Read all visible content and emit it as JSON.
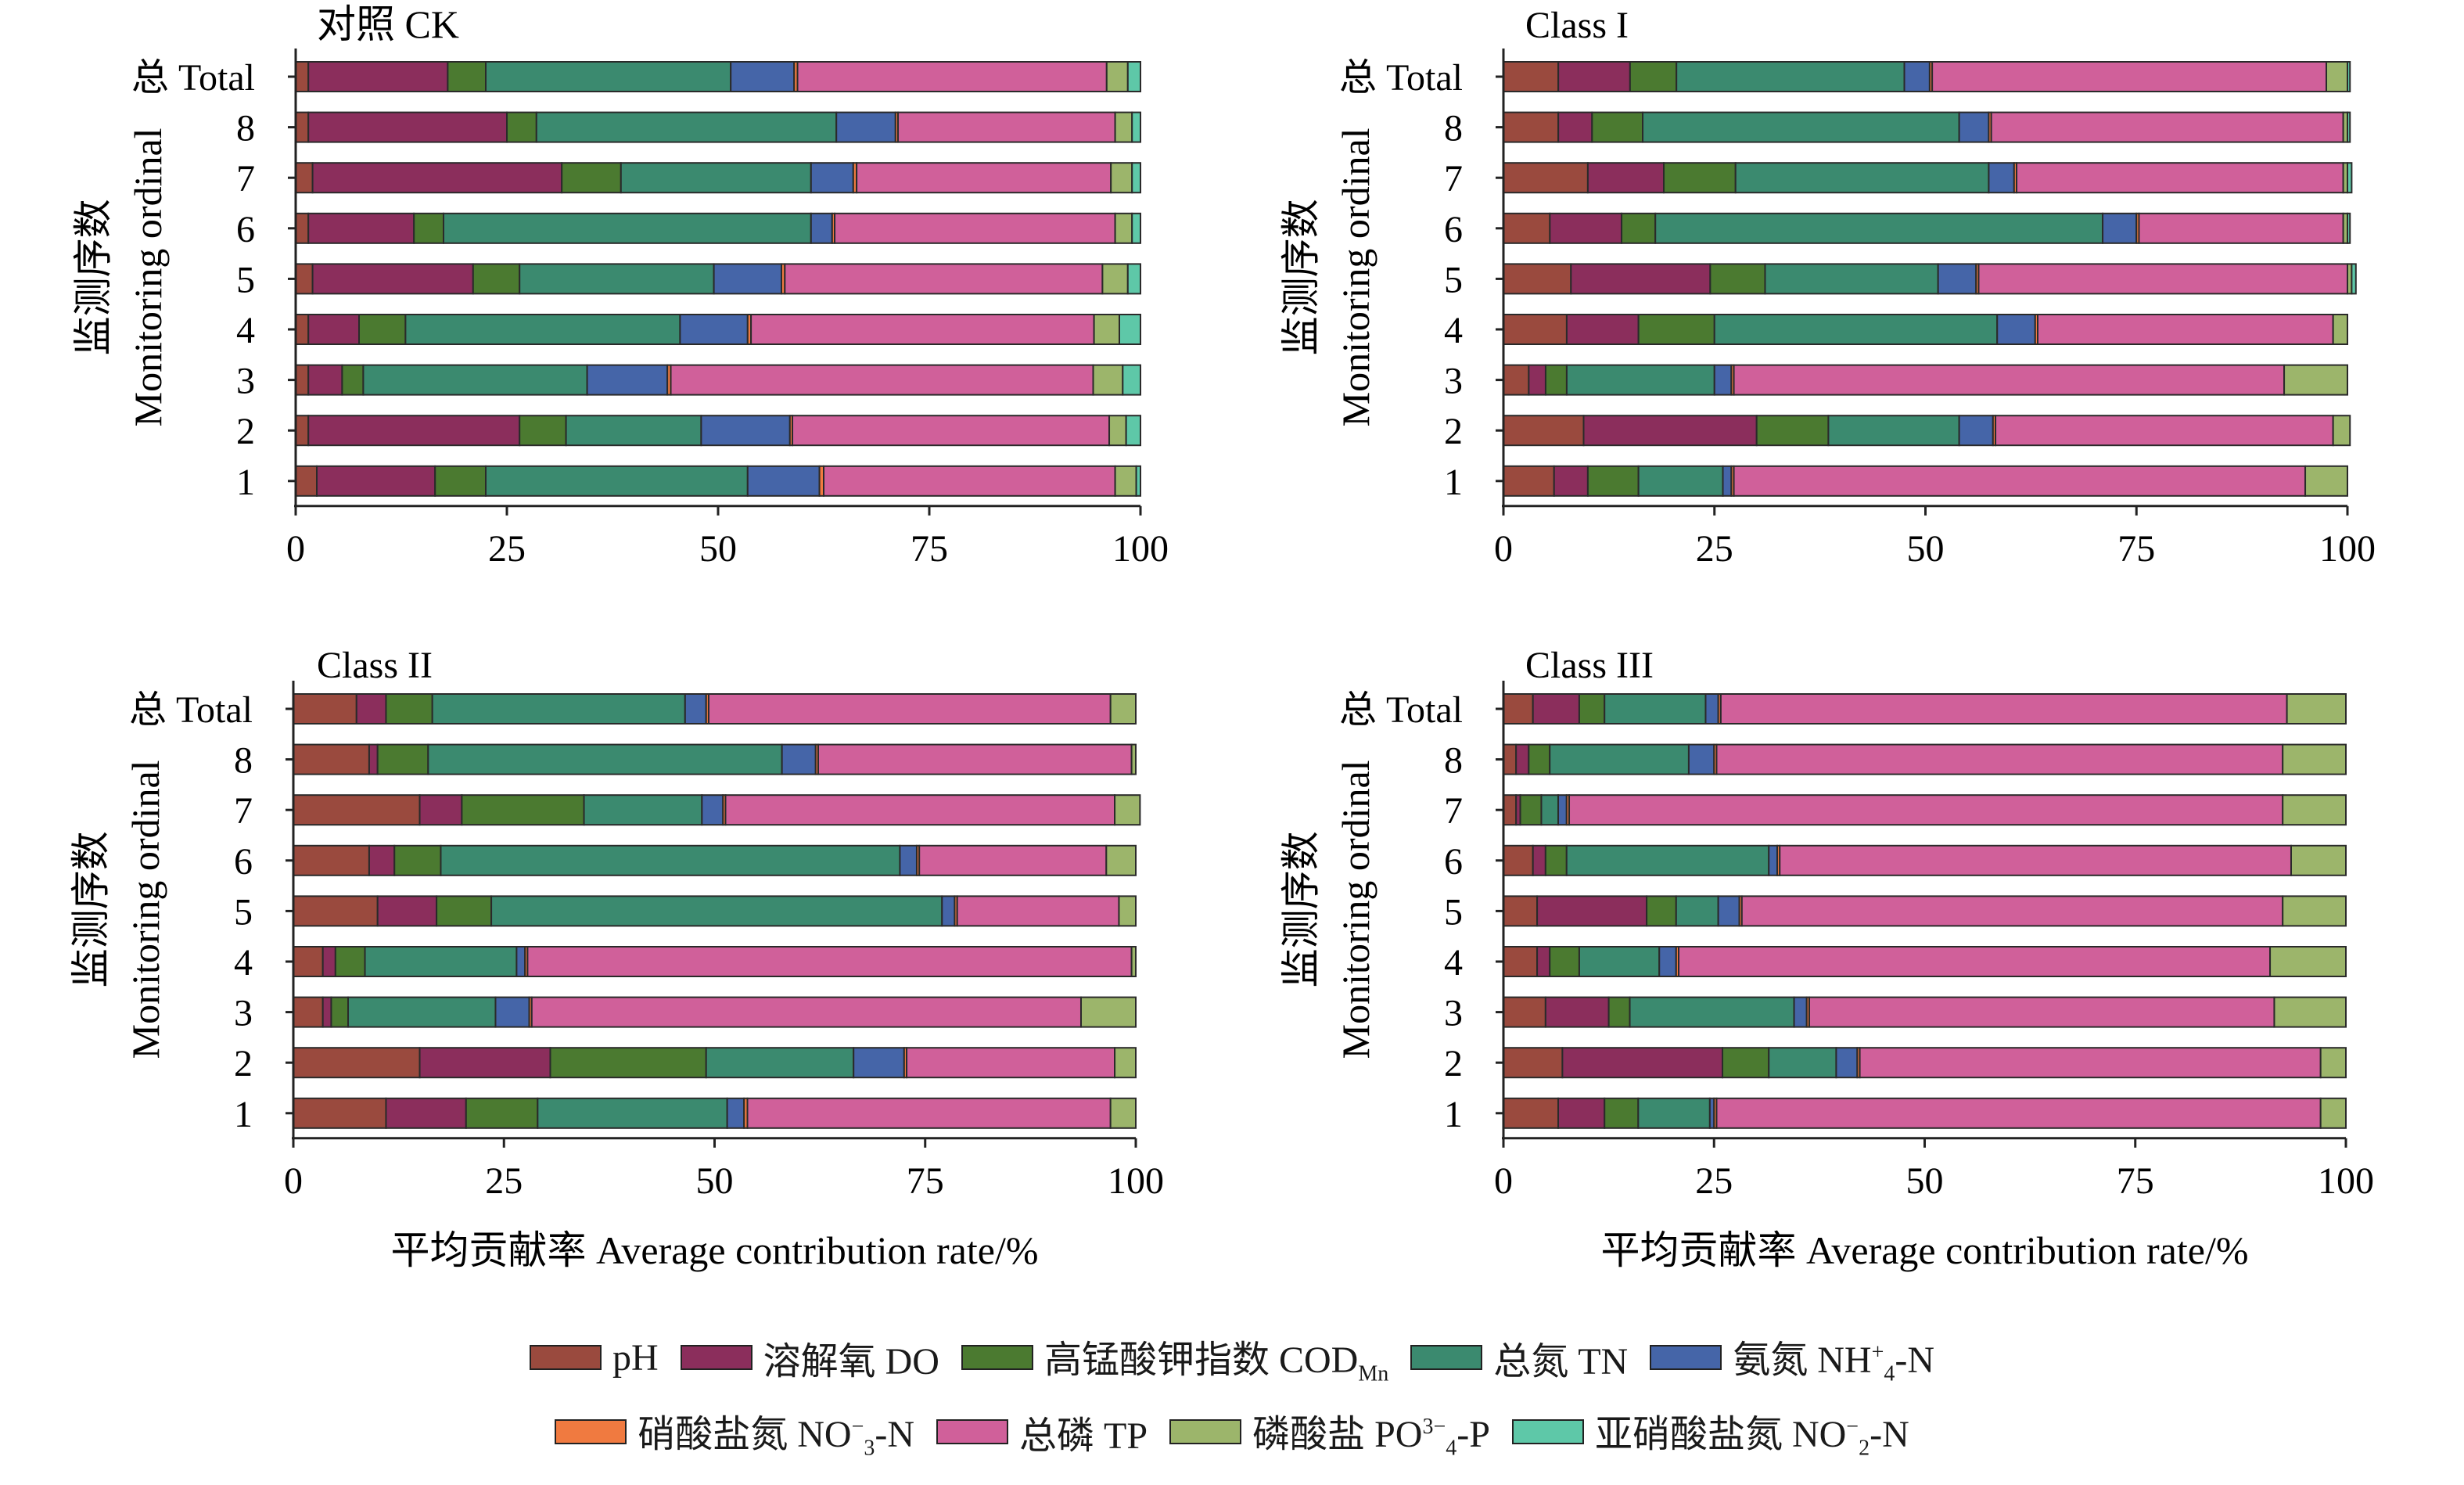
{
  "chart_data": [
    {
      "type": "bar",
      "orientation": "horizontal",
      "stacked": true,
      "title": "对照 CK",
      "xlabel": "",
      "ylabel_cn": "监测序数",
      "ylabel_en": "Monitoring ordinal",
      "xlim": [
        0,
        100
      ],
      "xticks": [
        "0",
        "25",
        "50",
        "75",
        "100"
      ],
      "categories": [
        "1",
        "2",
        "3",
        "4",
        "5",
        "6",
        "7",
        "8",
        "总 Total"
      ],
      "series": [
        {
          "name": "pH",
          "values": [
            2.5,
            1.5,
            1.5,
            1.5,
            2,
            1.5,
            2,
            1.5,
            1.5
          ]
        },
        {
          "name": "溶解氧 DO",
          "values": [
            14,
            25,
            4,
            6,
            19,
            12.5,
            29.5,
            23.5,
            16.5
          ]
        },
        {
          "name": "高锰酸钾指数 COD_Mn",
          "values": [
            6,
            5.5,
            2.5,
            5.5,
            5.5,
            3.5,
            7,
            3.5,
            4.5
          ]
        },
        {
          "name": "总氮 TN",
          "values": [
            31,
            16,
            26.5,
            32.5,
            23,
            43.5,
            22.5,
            35.5,
            29
          ]
        },
        {
          "name": "氨氮 NH4+-N",
          "values": [
            8.5,
            10.5,
            9.5,
            8,
            8,
            2.5,
            5,
            7,
            7.5
          ]
        },
        {
          "name": "硝酸盐氮 NO3--N",
          "values": [
            0.5,
            0.3,
            0.4,
            0.4,
            0.4,
            0.3,
            0.4,
            0.3,
            0.4
          ]
        },
        {
          "name": "总磷 TP",
          "values": [
            34.5,
            37.5,
            50,
            40.6,
            37.6,
            33.2,
            30.1,
            25.7,
            36.6
          ]
        },
        {
          "name": "磷酸盐 PO43--P",
          "values": [
            2.5,
            2,
            3.5,
            3,
            3,
            2,
            2.5,
            2,
            2.5
          ]
        },
        {
          "name": "亚硝酸盐氮 NO2--N",
          "values": [
            0.5,
            1.7,
            2.1,
            2.5,
            1.5,
            1,
            1,
            1,
            1.5
          ]
        }
      ]
    },
    {
      "type": "bar",
      "orientation": "horizontal",
      "stacked": true,
      "title": "Class I",
      "xlabel": "",
      "ylabel_cn": "监测序数",
      "ylabel_en": "Monitoring ordinal",
      "xlim": [
        0,
        100
      ],
      "xticks": [
        "0",
        "25",
        "50",
        "75",
        "100"
      ],
      "categories": [
        "1",
        "2",
        "3",
        "4",
        "5",
        "6",
        "7",
        "8",
        "总 Total"
      ],
      "series": [
        {
          "name": "pH",
          "values": [
            6,
            9.5,
            3,
            7.5,
            8,
            5.5,
            10,
            6.5,
            6.5
          ]
        },
        {
          "name": "溶解氧 DO",
          "values": [
            4,
            20.5,
            2,
            8.5,
            16.5,
            8.5,
            9,
            4,
            8.5
          ]
        },
        {
          "name": "高锰酸钾指数 COD_Mn",
          "values": [
            6,
            8.5,
            2.5,
            9,
            6.5,
            4,
            8.5,
            6,
            5.5
          ]
        },
        {
          "name": "总氮 TN",
          "values": [
            10,
            15.5,
            17.5,
            33.5,
            20.5,
            53,
            30,
            37.5,
            27
          ]
        },
        {
          "name": "氨氮 NH4+-N",
          "values": [
            1,
            4,
            2,
            4.5,
            4.5,
            4,
            3,
            3.5,
            3
          ]
        },
        {
          "name": "硝酸盐氮 NO3--N",
          "values": [
            0.3,
            0.3,
            0.3,
            0.3,
            0.3,
            0.3,
            0.3,
            0.3,
            0.3
          ]
        },
        {
          "name": "总磷 TP",
          "values": [
            67.7,
            40,
            65.2,
            35,
            43.7,
            24.2,
            38.7,
            41.7,
            46.7
          ]
        },
        {
          "name": "磷酸盐 PO43--P",
          "values": [
            5,
            2,
            7.5,
            1.7,
            0.5,
            0.5,
            0.5,
            0.5,
            2.5
          ]
        },
        {
          "name": "亚硝酸盐氮 NO2--N",
          "values": [
            0,
            0,
            0,
            0,
            0.5,
            0.3,
            0.5,
            0.3,
            0.3
          ]
        }
      ]
    },
    {
      "type": "bar",
      "orientation": "horizontal",
      "stacked": true,
      "title": "Class II",
      "xlabel_cn": "平均贡献率",
      "xlabel_en": "Average contribution rate/%",
      "ylabel_cn": "监测序数",
      "ylabel_en": "Monitoring ordinal",
      "xlim": [
        0,
        100
      ],
      "xticks": [
        "0",
        "25",
        "50",
        "75",
        "100"
      ],
      "categories": [
        "1",
        "2",
        "3",
        "4",
        "5",
        "6",
        "7",
        "8",
        "总 Total"
      ],
      "series": [
        {
          "name": "pH",
          "values": [
            11,
            15,
            3.5,
            3.5,
            10,
            9,
            15,
            9,
            7.5
          ]
        },
        {
          "name": "溶解氧 DO",
          "values": [
            9.5,
            15.5,
            1,
            1.5,
            7,
            3,
            5,
            1,
            3.5
          ]
        },
        {
          "name": "高锰酸钾指数 COD_Mn",
          "values": [
            8.5,
            18.5,
            2,
            3.5,
            6.5,
            5.5,
            14.5,
            6,
            5.5
          ]
        },
        {
          "name": "总氮 TN",
          "values": [
            22.5,
            17.5,
            17.5,
            18,
            53.5,
            54.5,
            14,
            42,
            30
          ]
        },
        {
          "name": "氨氮 NH4+-N",
          "values": [
            2,
            6,
            4,
            1,
            1.5,
            2,
            2.5,
            4,
            2.5
          ]
        },
        {
          "name": "硝酸盐氮 NO3--N",
          "values": [
            0.4,
            0.3,
            0.3,
            0.3,
            0.3,
            0.3,
            0.3,
            0.3,
            0.3
          ]
        },
        {
          "name": "总磷 TP",
          "values": [
            43.1,
            24.7,
            65.2,
            71.7,
            19.2,
            22.2,
            46.2,
            37.2,
            47.7
          ]
        },
        {
          "name": "磷酸盐 PO43--P",
          "values": [
            3,
            2.5,
            6.5,
            0.5,
            2,
            3.5,
            3,
            0.5,
            3
          ]
        },
        {
          "name": "亚硝酸盐氮 NO2--N",
          "values": [
            0,
            0,
            0,
            0,
            0,
            0,
            0,
            0,
            0
          ]
        }
      ]
    },
    {
      "type": "bar",
      "orientation": "horizontal",
      "stacked": true,
      "title": "Class III",
      "xlabel_cn": "平均贡献率",
      "xlabel_en": "Average contribution rate/%",
      "ylabel_cn": "监测序数",
      "ylabel_en": "Monitoring ordinal",
      "xlim": [
        0,
        100
      ],
      "xticks": [
        "0",
        "25",
        "50",
        "75",
        "100"
      ],
      "categories": [
        "1",
        "2",
        "3",
        "4",
        "5",
        "6",
        "7",
        "8",
        "总 Total"
      ],
      "series": [
        {
          "name": "pH",
          "values": [
            6.5,
            7,
            5,
            4,
            4,
            3.5,
            1.5,
            1.5,
            3.5
          ]
        },
        {
          "name": "溶解氧 DO",
          "values": [
            5.5,
            19,
            7.5,
            1.5,
            13,
            1.5,
            0.5,
            1.5,
            5.5
          ]
        },
        {
          "name": "高锰酸钾指数 COD_Mn",
          "values": [
            4,
            5.5,
            2.5,
            3.5,
            3.5,
            2.5,
            2.5,
            2.5,
            3
          ]
        },
        {
          "name": "总氮 TN",
          "values": [
            8.5,
            8,
            19.5,
            9.5,
            5,
            24,
            2,
            16.5,
            12
          ]
        },
        {
          "name": "氨氮 NH4+-N",
          "values": [
            0.5,
            2.5,
            1.5,
            2,
            2.5,
            1,
            1,
            3,
            1.5
          ]
        },
        {
          "name": "硝酸盐氮 NO3--N",
          "values": [
            0.3,
            0.3,
            0.3,
            0.3,
            0.3,
            0.3,
            0.3,
            0.3,
            0.3
          ]
        },
        {
          "name": "总磷 TP",
          "values": [
            71.7,
            54.7,
            55.2,
            70.2,
            64.2,
            60.7,
            84.7,
            67.2,
            67.2
          ]
        },
        {
          "name": "磷酸盐 PO43--P",
          "values": [
            3,
            3,
            8.5,
            9,
            7.5,
            6.5,
            7.5,
            7.5,
            7
          ]
        },
        {
          "name": "亚硝酸盐氮 NO2--N",
          "values": [
            0,
            0,
            0,
            0,
            0,
            0,
            0,
            0,
            0
          ]
        }
      ]
    }
  ],
  "legend": {
    "placement": "bottom",
    "items": [
      {
        "key": "pH",
        "label": "pH",
        "color": "#9a4a3e"
      },
      {
        "key": "do",
        "label": "溶解氧 DO",
        "color": "#8b2e5c"
      },
      {
        "key": "cod",
        "label_main": "高锰酸钾指数 COD",
        "label_sub": "Mn",
        "color": "#4b7a30"
      },
      {
        "key": "tn",
        "label": "总氮 TN",
        "color": "#3b8a6f"
      },
      {
        "key": "nh4",
        "label_main": "氨氮 NH",
        "label_sup": "+",
        "label_sub": "4",
        "label_tail": "-N",
        "color": "#4565a8"
      },
      {
        "key": "no3",
        "label_main": "硝酸盐氮 NO",
        "label_sup": "−",
        "label_sub": "3",
        "label_tail": "-N",
        "color": "#f07a40"
      },
      {
        "key": "tp",
        "label": "总磷 TP",
        "color": "#d0609a"
      },
      {
        "key": "po4",
        "label_main": "磷酸盐 PO",
        "label_sup": "3−",
        "label_sub": "4",
        "label_tail": "-P",
        "color": "#9cb56b"
      },
      {
        "key": "no2",
        "label_main": "亚硝酸盐氮 NO",
        "label_sup": "−",
        "label_sub": "2",
        "label_tail": "-N",
        "color": "#5ec8a8"
      }
    ]
  }
}
